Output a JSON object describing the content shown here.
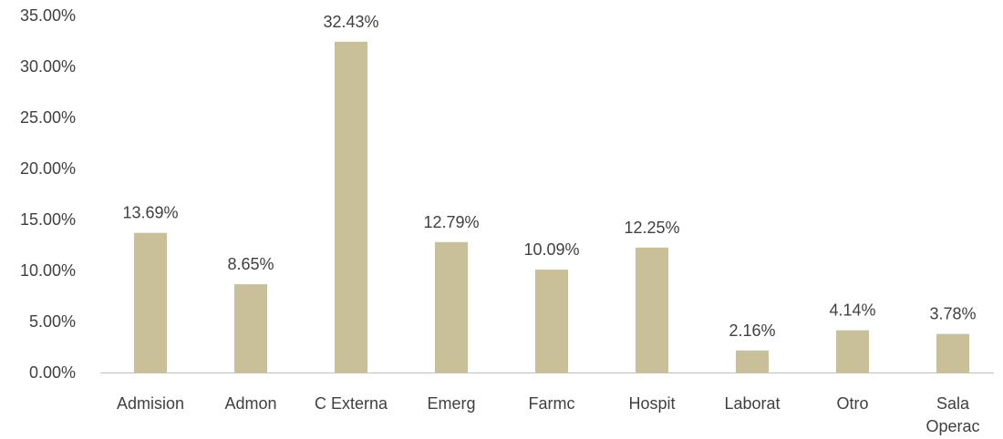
{
  "chart_data": {
    "type": "bar",
    "categories": [
      "Admision",
      "Admon",
      "C Externa",
      "Emerg",
      "Farmc",
      "Hospit",
      "Laborat",
      "Otro",
      "Sala Operac"
    ],
    "category_lines": [
      [
        "Admision"
      ],
      [
        "Admon"
      ],
      [
        "C Externa"
      ],
      [
        "Emerg"
      ],
      [
        "Farmc"
      ],
      [
        "Hospit"
      ],
      [
        "Laborat"
      ],
      [
        "Otro"
      ],
      [
        "Sala",
        "Operac"
      ]
    ],
    "values": [
      13.69,
      8.65,
      32.43,
      12.79,
      10.09,
      12.25,
      2.16,
      4.14,
      3.78
    ],
    "data_labels": [
      "13.69%",
      "8.65%",
      "32.43%",
      "12.79%",
      "10.09%",
      "12.25%",
      "2.16%",
      "4.14%",
      "3.78%"
    ],
    "y_ticks": [
      0,
      5,
      10,
      15,
      20,
      25,
      30,
      35
    ],
    "y_tick_labels": [
      "0.00%",
      "5.00%",
      "10.00%",
      "15.00%",
      "20.00%",
      "25.00%",
      "30.00%",
      "35.00%"
    ],
    "ylim": [
      0,
      35
    ],
    "title": "",
    "xlabel": "",
    "ylabel": "",
    "grid": false,
    "legend": "none",
    "bar_color": "#c9bf98",
    "text_color": "#404040",
    "axis_color": "#bfbfbf"
  }
}
